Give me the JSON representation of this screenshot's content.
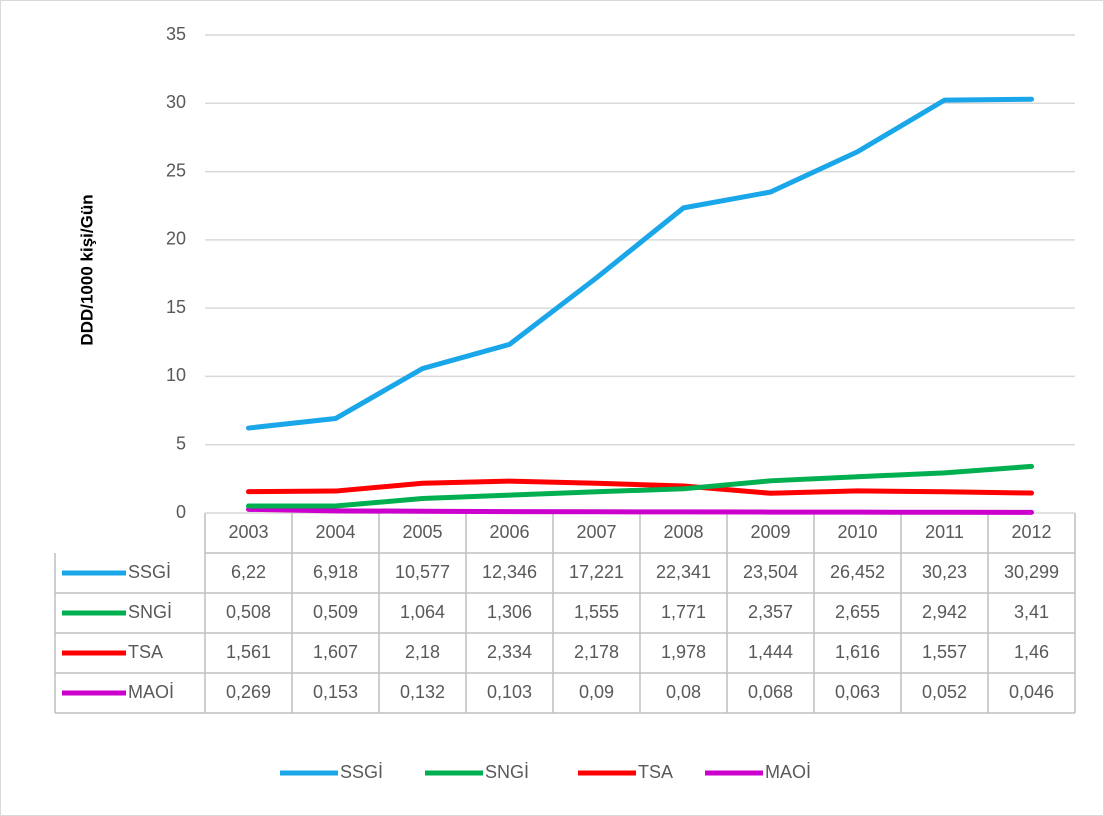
{
  "chart_data": {
    "type": "line",
    "y_label": "DDD/1000 kişi/Gün",
    "categories": [
      "2003",
      "2004",
      "2005",
      "2006",
      "2007",
      "2008",
      "2009",
      "2010",
      "2011",
      "2012"
    ],
    "ylim": [
      0,
      35
    ],
    "yticks": [
      0,
      5,
      10,
      15,
      20,
      25,
      30,
      35
    ],
    "grid": true,
    "legend": "bottom",
    "series": [
      {
        "name": "SSGİ",
        "color": "#1aa7ea",
        "values": [
          6.22,
          6.918,
          10.577,
          12.346,
          17.221,
          22.341,
          23.504,
          26.452,
          30.23,
          30.299
        ],
        "value_labels": [
          "6,22",
          "6,918",
          "10,577",
          "12,346",
          "17,221",
          "22,341",
          "23,504",
          "26,452",
          "30,23",
          "30,299"
        ]
      },
      {
        "name": "SNGİ",
        "color": "#00b050",
        "values": [
          0.508,
          0.509,
          1.064,
          1.306,
          1.555,
          1.771,
          2.357,
          2.655,
          2.942,
          3.41
        ],
        "value_labels": [
          "0,508",
          "0,509",
          "1,064",
          "1,306",
          "1,555",
          "1,771",
          "2,357",
          "2,655",
          "2,942",
          "3,41"
        ]
      },
      {
        "name": "TSA",
        "color": "#ff0000",
        "values": [
          1.561,
          1.607,
          2.18,
          2.334,
          2.178,
          1.978,
          1.444,
          1.616,
          1.557,
          1.46
        ],
        "value_labels": [
          "1,561",
          "1,607",
          "2,18",
          "2,334",
          "2,178",
          "1,978",
          "1,444",
          "1,616",
          "1,557",
          "1,46"
        ]
      },
      {
        "name": "MAOİ",
        "color": "#cc00cc",
        "values": [
          0.269,
          0.153,
          0.132,
          0.103,
          0.09,
          0.08,
          0.068,
          0.063,
          0.052,
          0.046
        ],
        "value_labels": [
          "0,269",
          "0,153",
          "0,132",
          "0,103",
          "0,09",
          "0,08",
          "0,068",
          "0,063",
          "0,052",
          "0,046"
        ]
      }
    ]
  }
}
